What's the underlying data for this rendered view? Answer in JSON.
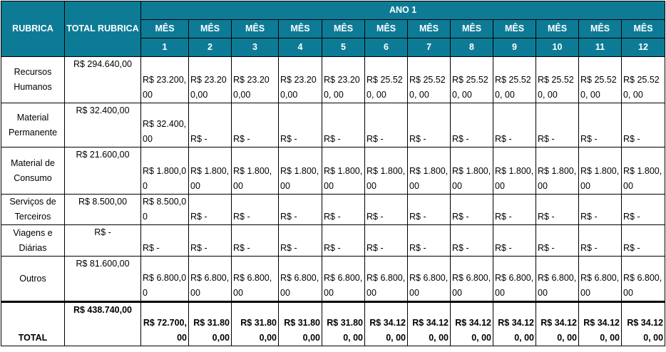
{
  "header": {
    "rubrica": "RUBRICA",
    "total_rubrica": "TOTAL RUBRICA",
    "year": "ANO 1",
    "month_label": "MÊS",
    "months": [
      "1",
      "2",
      "3",
      "4",
      "5",
      "6",
      "7",
      "8",
      "9",
      "10",
      "11",
      "12"
    ]
  },
  "rows": [
    {
      "label": "Recursos Humanos",
      "total": "R$ 294.640,00",
      "values": [
        "R$ 23.200,00",
        "R$ 23.200,00",
        "R$ 23.200,00",
        "R$ 23.200,00",
        "R$ 23.200, 00",
        "R$ 25.520, 00",
        "R$ 25.520, 00",
        "R$ 25.520, 00",
        "R$ 25.520, 00",
        "R$ 25.520, 00",
        "R$ 25.520, 00",
        "R$ 25.520, 00"
      ]
    },
    {
      "label": "Material Permanente",
      "total": "R$ 32.400,00",
      "values": [
        "R$ 32.400,00",
        "R$ -",
        "R$ -",
        "R$ -",
        "R$ -",
        "R$ -",
        "R$ -",
        "R$ -",
        "R$ -",
        "R$ -",
        "R$ -",
        "R$ -"
      ]
    },
    {
      "label": "Material de Consumo",
      "total": "R$ 21.600,00",
      "values": [
        "R$ 1.800,00",
        "R$ 1.800,00",
        "R$ 1.800,00",
        "R$ 1.800,00",
        "R$ 1.800,00",
        "R$ 1.800,00",
        "R$ 1.800,00",
        "R$ 1.800,00",
        "R$ 1.800,00",
        "R$ 1.800,00",
        "R$ 1.800,00",
        "R$ 1.800,00"
      ]
    },
    {
      "label": "Serviços de Terceiros",
      "total": "R$ 8.500,00",
      "values": [
        "R$ 8.500,00",
        "R$ -",
        "R$ -",
        "R$ -",
        "R$ -",
        "R$ -",
        "R$ -",
        "R$ -",
        "R$ -",
        "R$ -",
        "R$ -",
        "R$ -"
      ]
    },
    {
      "label": "Viagens e Diárias",
      "total": "R$ -",
      "values": [
        "R$ -",
        "R$ -",
        "R$ -",
        "R$ -",
        "R$ -",
        "R$ -",
        "R$ -",
        "R$ -",
        "R$ -",
        "R$ -",
        "R$ -",
        "R$ -"
      ]
    },
    {
      "label": "Outros",
      "total": "R$ 81.600,00",
      "values": [
        "R$ 6.800,00",
        "R$ 6.800,00",
        "R$ 6.800,00",
        "R$ 6.800,00",
        "R$ 6.800,00",
        "R$ 6.800,00",
        "R$ 6.800,00",
        "R$ 6.800,00",
        "R$ 6.800,00",
        "R$ 6.800,00",
        "R$ 6.800,00",
        "R$ 6.800,00"
      ]
    }
  ],
  "total_row": {
    "label": "TOTAL",
    "total": "R$ 438.740,00",
    "values": [
      "R$ 72.700,00",
      "R$ 31.800,00",
      "R$ 31.800,00",
      "R$ 31.800,00",
      "R$ 31.800, 00",
      "R$ 34.120, 00",
      "R$ 34.120, 00",
      "R$ 34.120, 00",
      "R$ 34.120, 00",
      "R$ 34.120, 00",
      "R$ 34.120, 00",
      "R$ 34.120, 00"
    ]
  },
  "colors": {
    "header_bg": "#0e7b96",
    "header_text": "#ffffff"
  }
}
